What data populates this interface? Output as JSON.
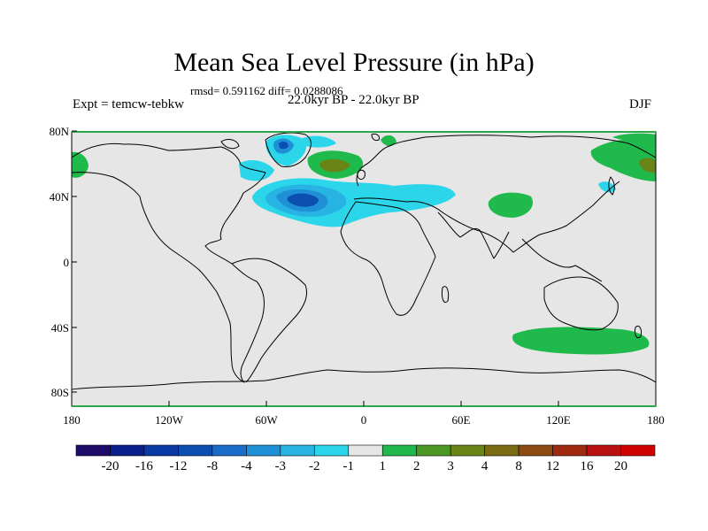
{
  "header": {
    "title": "Mean Sea Level Pressure (in hPa)",
    "stats": "rmsd= 0.591162 diff= 0.0288086",
    "experiment": "Expt = temcw-tebkw",
    "period": "22.0kyr BP - 22.0kyr BP",
    "season": "DJF"
  },
  "axes": {
    "lat_labels": [
      "80N",
      "40N",
      "0",
      "40S",
      "80S"
    ],
    "lon_labels": [
      "180",
      "120W",
      "60W",
      "0",
      "60E",
      "120E",
      "180"
    ]
  },
  "colorbar": {
    "colors": [
      "#1e0c6b",
      "#0a1f8c",
      "#0a3aa3",
      "#0b4fb0",
      "#1a6cc8",
      "#1f8fd6",
      "#28b4e3",
      "#2bd6ea",
      "#e6e6e6",
      "#1fb94c",
      "#4c9624",
      "#6a8418",
      "#7a6a12",
      "#8a4a10",
      "#a02a10",
      "#b81010",
      "#d00000"
    ],
    "labels": [
      "-20",
      "-16",
      "-12",
      "-8",
      "-4",
      "-3",
      "-2",
      "-1",
      "1",
      "2",
      "3",
      "4",
      "8",
      "12",
      "16",
      "20"
    ]
  },
  "palette": {
    "background": "#e6e6e6",
    "coast": "#000000",
    "frame": "#000000"
  }
}
